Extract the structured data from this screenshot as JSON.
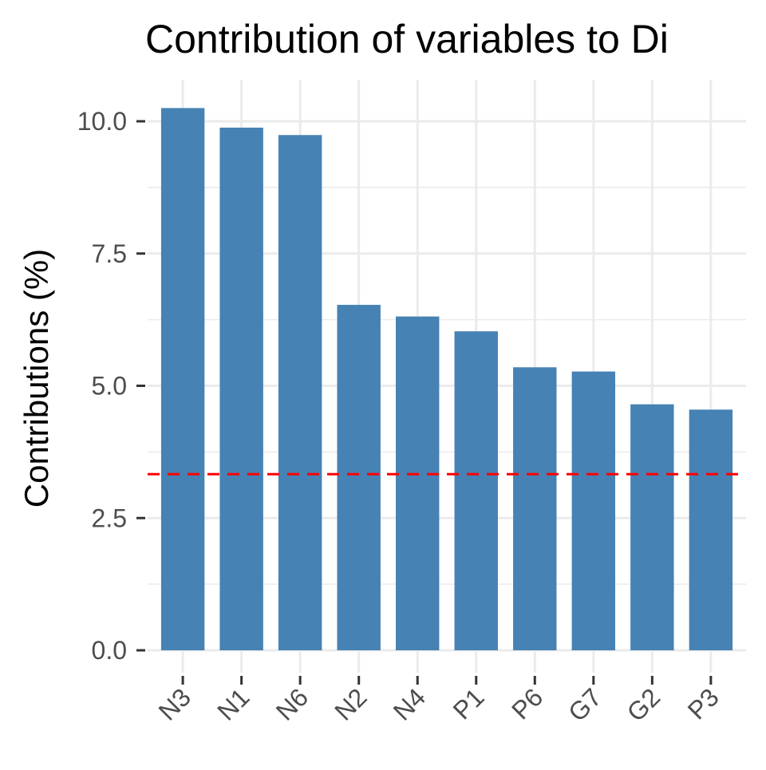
{
  "chart_data": {
    "type": "bar",
    "title": "Contribution of variables to Di",
    "xlabel": "",
    "ylabel": "Contributions (%)",
    "categories": [
      "N3",
      "N1",
      "N6",
      "N2",
      "N4",
      "P1",
      "P6",
      "G7",
      "G2",
      "P3"
    ],
    "values": [
      10.25,
      9.88,
      9.74,
      6.53,
      6.31,
      6.03,
      5.35,
      5.27,
      4.65,
      4.55
    ],
    "ylim": [
      0,
      10.5
    ],
    "yticks": [
      0,
      2.5,
      5,
      7.5,
      10
    ],
    "ytick_labels": [
      "0.0",
      "2.5",
      "5.0",
      "7.5",
      "10.0"
    ],
    "reference_line": {
      "value": 3.33,
      "style": "dashed",
      "color": "#ff0000"
    },
    "bar_color": "#4682b4",
    "grid": true,
    "gridline_color": "#ebebeb",
    "x_tick_label_rotation": "45 degrees",
    "legend": "none"
  }
}
